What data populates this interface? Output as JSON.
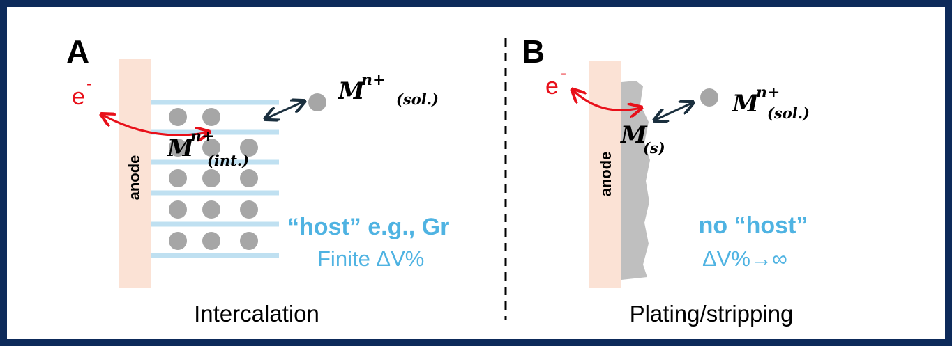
{
  "panels": [
    {
      "label": "A",
      "anode": "anode",
      "electron": {
        "base": "e",
        "sup": "-"
      },
      "solution_ion": {
        "base": "M",
        "sup": "n+",
        "sub": "(sol.)"
      },
      "intercalated_ion": {
        "base": "M",
        "sup": "n+",
        "sub": "(int.)"
      },
      "host": "“host” e.g., Gr",
      "volume": "Finite ΔV%",
      "caption": "Intercalation"
    },
    {
      "label": "B",
      "anode": "anode",
      "electron": {
        "base": "e",
        "sup": "-"
      },
      "solution_ion": {
        "base": "M",
        "sup": "n+",
        "sub": "(sol.)"
      },
      "deposit": {
        "base": "M",
        "sub": "(s)"
      },
      "host": "no “host”",
      "volume": "ΔV%→∞",
      "caption": "Plating/stripping"
    }
  ]
}
